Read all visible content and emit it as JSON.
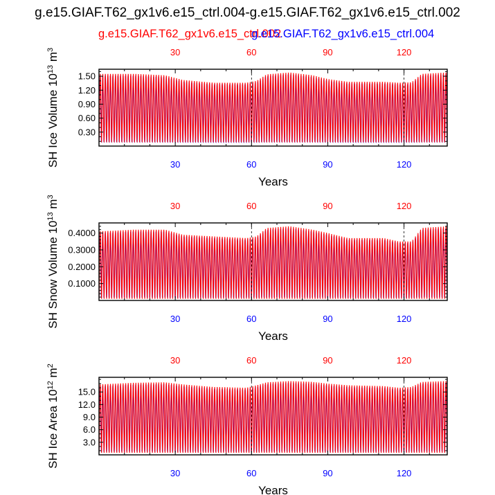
{
  "title": "g.e15.GIAF.T62_gx1v6.e15_ctrl.004-g.e15.GIAF.T62_gx1v6.e15_ctrl.002",
  "legend": {
    "red_label": "g.e15.GIAF.T62_gx1v6.e15_ctrl.002",
    "blue_label": "g.e15.GIAF.T62_gx1v6.e15_ctrl.004",
    "red_color": "#ff0000",
    "blue_color": "#0000ff"
  },
  "chart_data": [
    {
      "type": "line",
      "ylabel": "SH Ice Volume 10^13 m^3",
      "ylabel_parts": {
        "base": "SH Ice Volume 10",
        "exp1": "13",
        "mid": " m",
        "exp2": "3"
      },
      "xlabel": "Years",
      "xlim": [
        0,
        137
      ],
      "ylim": [
        0,
        1.65
      ],
      "top_ticks": [
        "30",
        "60",
        "90",
        "120"
      ],
      "bottom_ticks": [
        "30",
        "60",
        "90",
        "120"
      ],
      "tick_values": [
        30,
        60,
        90,
        120
      ],
      "y_ticks": [
        0.3,
        0.6,
        0.9,
        1.2,
        1.5
      ],
      "y_tick_labels": [
        "0.30",
        "0.60",
        "0.90",
        "1.20",
        "1.50"
      ],
      "y_minor_step": 0.1,
      "min_level": 0.08,
      "max_ctrl": [
        [
          0,
          1.55
        ],
        [
          14,
          1.55
        ],
        [
          26,
          1.52
        ],
        [
          33,
          1.42
        ],
        [
          45,
          1.36
        ],
        [
          58,
          1.36
        ],
        [
          62,
          1.4
        ],
        [
          66,
          1.54
        ],
        [
          75,
          1.58
        ],
        [
          84,
          1.52
        ],
        [
          90,
          1.44
        ],
        [
          98,
          1.38
        ],
        [
          112,
          1.38
        ],
        [
          118,
          1.36
        ],
        [
          123,
          1.37
        ],
        [
          127,
          1.55
        ],
        [
          137,
          1.58
        ]
      ],
      "series": [
        {
          "name": "g.e15.GIAF.T62_gx1v6.e15_ctrl.002",
          "color": "#ff0000"
        },
        {
          "name": "g.e15.GIAF.T62_gx1v6.e15_ctrl.004",
          "color": "#0000ff"
        }
      ]
    },
    {
      "type": "line",
      "ylabel": "SH Snow Volume 10^13 m^3",
      "ylabel_parts": {
        "base": "SH Snow Volume 10",
        "exp1": "13",
        "mid": " m",
        "exp2": "3"
      },
      "xlabel": "Years",
      "xlim": [
        0,
        137
      ],
      "ylim": [
        0,
        0.46
      ],
      "top_ticks": [
        "30",
        "60",
        "90",
        "120"
      ],
      "bottom_ticks": [
        "30",
        "60",
        "90",
        "120"
      ],
      "tick_values": [
        30,
        60,
        90,
        120
      ],
      "y_ticks": [
        0.1,
        0.2,
        0.3,
        0.4
      ],
      "y_tick_labels": [
        "0.1000",
        "0.2000",
        "0.3000",
        "0.4000"
      ],
      "y_minor_step": 0.02,
      "min_level": 0.01,
      "max_ctrl": [
        [
          0,
          0.41
        ],
        [
          14,
          0.42
        ],
        [
          26,
          0.42
        ],
        [
          33,
          0.39
        ],
        [
          45,
          0.38
        ],
        [
          58,
          0.37
        ],
        [
          62,
          0.38
        ],
        [
          66,
          0.43
        ],
        [
          75,
          0.44
        ],
        [
          84,
          0.42
        ],
        [
          90,
          0.4
        ],
        [
          98,
          0.37
        ],
        [
          112,
          0.37
        ],
        [
          118,
          0.35
        ],
        [
          123,
          0.35
        ],
        [
          127,
          0.43
        ],
        [
          137,
          0.44
        ]
      ],
      "series": [
        {
          "name": "g.e15.GIAF.T62_gx1v6.e15_ctrl.002",
          "color": "#ff0000"
        },
        {
          "name": "g.e15.GIAF.T62_gx1v6.e15_ctrl.004",
          "color": "#0000ff"
        }
      ]
    },
    {
      "type": "line",
      "ylabel": "SH Ice Area 10^12 m^2",
      "ylabel_parts": {
        "base": "SH Ice Area 10",
        "exp1": "12",
        "mid": " m",
        "exp2": "2"
      },
      "xlabel": "Years",
      "xlim": [
        0,
        137
      ],
      "ylim": [
        0,
        18.5
      ],
      "top_ticks": [
        "30",
        "60",
        "90",
        "120"
      ],
      "bottom_ticks": [
        "30",
        "60",
        "90",
        "120"
      ],
      "tick_values": [
        30,
        60,
        90,
        120
      ],
      "y_ticks": [
        3,
        6,
        9,
        12,
        15
      ],
      "y_tick_labels": [
        "3.0",
        "6.0",
        "9.0",
        "12.0",
        "15.0"
      ],
      "y_minor_step": 1,
      "min_level": 0.5,
      "max_ctrl": [
        [
          0,
          16.8
        ],
        [
          14,
          17.2
        ],
        [
          26,
          17.3
        ],
        [
          33,
          16.8
        ],
        [
          45,
          16.2
        ],
        [
          58,
          16.0
        ],
        [
          62,
          16.6
        ],
        [
          66,
          17.3
        ],
        [
          75,
          17.6
        ],
        [
          84,
          17.4
        ],
        [
          90,
          17.0
        ],
        [
          98,
          16.6
        ],
        [
          112,
          16.4
        ],
        [
          118,
          16.0
        ],
        [
          123,
          16.2
        ],
        [
          127,
          17.4
        ],
        [
          137,
          17.6
        ]
      ],
      "series": [
        {
          "name": "g.e15.GIAF.T62_gx1v6.e15_ctrl.002",
          "color": "#ff0000"
        },
        {
          "name": "g.e15.GIAF.T62_gx1v6.e15_ctrl.004",
          "color": "#0000ff"
        }
      ]
    }
  ]
}
